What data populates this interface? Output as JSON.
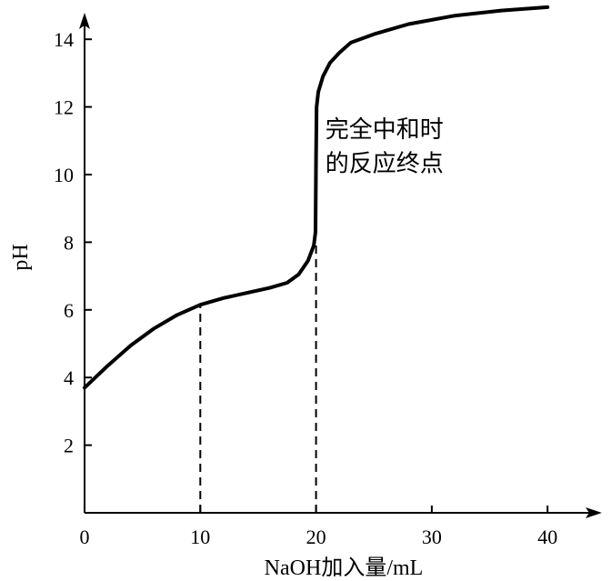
{
  "chart_data": {
    "type": "line",
    "title": "",
    "xlabel": "NaOH加入量/mL",
    "ylabel": "pH",
    "xlim": [
      0,
      45
    ],
    "ylim": [
      1,
      16
    ],
    "x_ticks": [
      0,
      10,
      20,
      30,
      40
    ],
    "y_ticks": [
      2,
      4,
      6,
      8,
      10,
      12,
      14
    ],
    "grid": false,
    "series": [
      {
        "x": [
          0,
          2,
          4,
          6,
          8,
          10,
          12,
          14,
          16,
          17.5,
          18.5,
          19.3,
          19.8,
          19.95,
          20,
          20.05,
          20.2,
          20.6,
          21.2,
          22,
          23,
          25,
          28,
          32,
          36,
          40
        ],
        "y": [
          3.7,
          4.35,
          4.95,
          5.45,
          5.85,
          6.15,
          6.35,
          6.5,
          6.65,
          6.8,
          7.05,
          7.45,
          7.9,
          8.3,
          10.5,
          12.0,
          12.45,
          12.9,
          13.3,
          13.6,
          13.9,
          14.15,
          14.45,
          14.7,
          14.85,
          14.95
        ]
      }
    ],
    "guides": [
      {
        "x": 10,
        "y": 6.15
      },
      {
        "x": 20,
        "y": 8.0
      }
    ],
    "annotation": {
      "line1": "完全中和时",
      "line2": "的反应终点",
      "x": 20.8,
      "y": 10.2
    }
  }
}
